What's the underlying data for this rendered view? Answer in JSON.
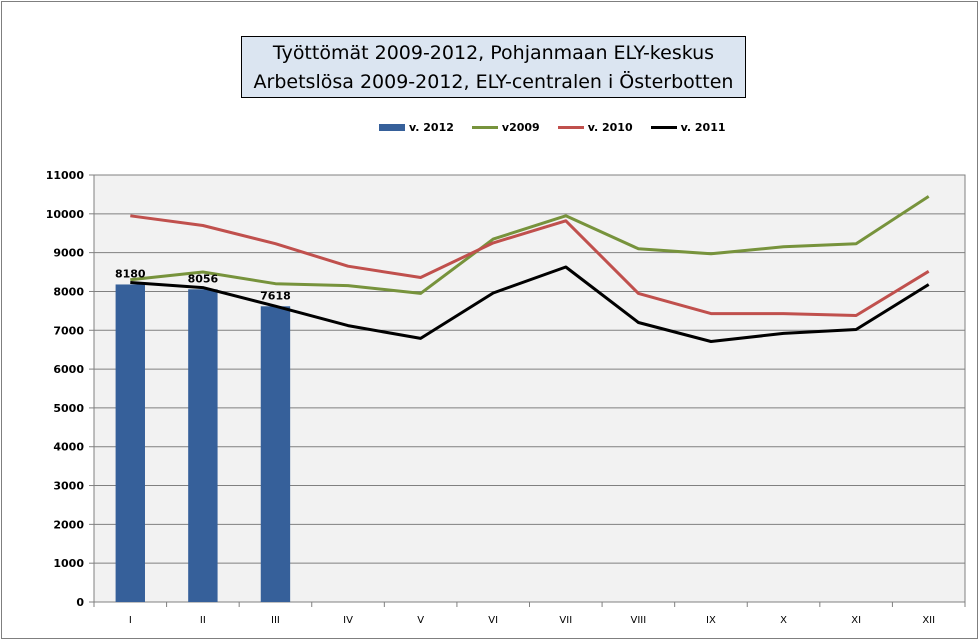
{
  "chart_data": {
    "type": "bar",
    "title_lines": [
      "Työttömät 2009-2012, Pohjanmaan ELY-keskus",
      "Arbetslösa 2009-2012, ELY-centralen i Österbotten"
    ],
    "categories": [
      "I",
      "II",
      "III",
      "IV",
      "V",
      "VI",
      "VII",
      "VIII",
      "IX",
      "X",
      "XI",
      "XII"
    ],
    "y_ticks": [
      "0",
      "1000",
      "2000",
      "3000",
      "4000",
      "5000",
      "6000",
      "7000",
      "8000",
      "9000",
      "10000",
      "11000"
    ],
    "ylim": [
      0,
      11000
    ],
    "grid": true,
    "legend_position": "top",
    "bar_series": {
      "name": "v. 2012",
      "color": "#36609a",
      "values": [
        8180,
        8056,
        7618
      ],
      "labels": [
        "8180",
        "8056",
        "7618"
      ]
    },
    "line_series": [
      {
        "name": "v2009",
        "color": "#77933c",
        "values": [
          8300,
          8500,
          8200,
          8150,
          7950,
          9350,
          9950,
          9100,
          8970,
          9150,
          9230,
          10450
        ]
      },
      {
        "name": "v. 2010",
        "color": "#c0504d",
        "values": [
          9950,
          9700,
          9230,
          8650,
          8360,
          9250,
          9820,
          7950,
          7430,
          7430,
          7380,
          8520
        ]
      },
      {
        "name": "v. 2011",
        "color": "#000000",
        "values": [
          8230,
          8100,
          7620,
          7120,
          6790,
          7960,
          8630,
          7200,
          6710,
          6920,
          7020,
          8180
        ]
      }
    ]
  }
}
